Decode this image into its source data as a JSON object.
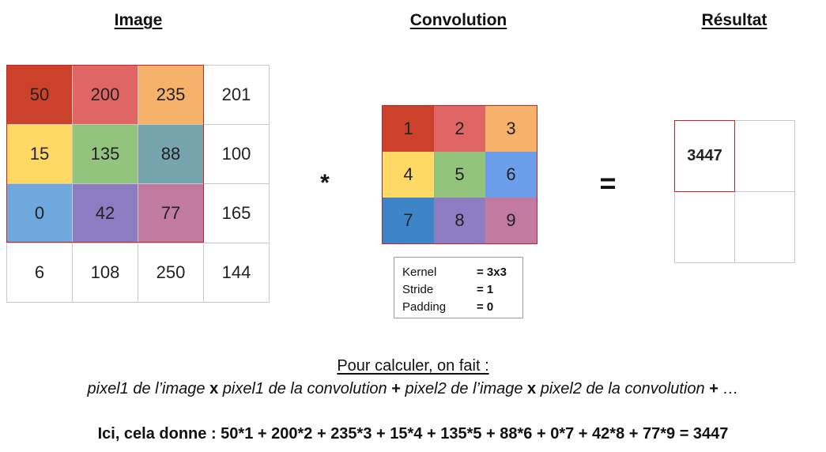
{
  "titles": {
    "image": "Image",
    "convolution": "Convolution",
    "result": "Résultat"
  },
  "image_matrix": {
    "rows": [
      [
        "50",
        "200",
        "235",
        "201"
      ],
      [
        "15",
        "135",
        "88",
        "100"
      ],
      [
        "0",
        "42",
        "77",
        "165"
      ],
      [
        "6",
        "108",
        "250",
        "144"
      ]
    ],
    "colors": [
      [
        "#cc4129",
        "#e06666",
        "#f6b26b",
        "#ffffff"
      ],
      [
        "#ffd966",
        "#93c47d",
        "#76a5af",
        "#ffffff"
      ],
      [
        "#6fa8dc",
        "#8e7cc3",
        "#c27ba0",
        "#ffffff"
      ],
      [
        "#ffffff",
        "#ffffff",
        "#ffffff",
        "#ffffff"
      ]
    ]
  },
  "kernel_matrix": {
    "rows": [
      [
        "1",
        "2",
        "3"
      ],
      [
        "4",
        "5",
        "6"
      ],
      [
        "7",
        "8",
        "9"
      ]
    ],
    "colors": [
      [
        "#cc4129",
        "#e06666",
        "#f6b26b"
      ],
      [
        "#ffd966",
        "#93c47d",
        "#6d9eeb"
      ],
      [
        "#3d85c6",
        "#8e7cc3",
        "#c27ba0"
      ]
    ]
  },
  "operators": {
    "multiply": "*",
    "equals": "="
  },
  "kernel_info": {
    "kernel_label": "Kernel",
    "kernel_value": "= 3x3",
    "stride_label": "Stride",
    "stride_value": "= 1",
    "padding_label": "Padding",
    "padding_value": "= 0"
  },
  "result_matrix": {
    "rows": [
      [
        "3447",
        ""
      ],
      [
        "",
        ""
      ]
    ]
  },
  "explanation": {
    "heading": "Pour calculer, on fait :",
    "formula_part1": "pixel1 de l’image ",
    "op1": "x",
    "formula_part2": " pixel1 de la convolution ",
    "op2": "+",
    "formula_part3": " pixel2 de l’image ",
    "op3": "x",
    "formula_part4": " pixel2 de la convolution ",
    "op4": "+",
    "formula_part5": " …",
    "result_line": "Ici, cela donne : 50*1 + 200*2 + 235*3 + 15*4 + 135*5 + 88*6 + 0*7 + 42*8 + 77*9 = 3447"
  }
}
